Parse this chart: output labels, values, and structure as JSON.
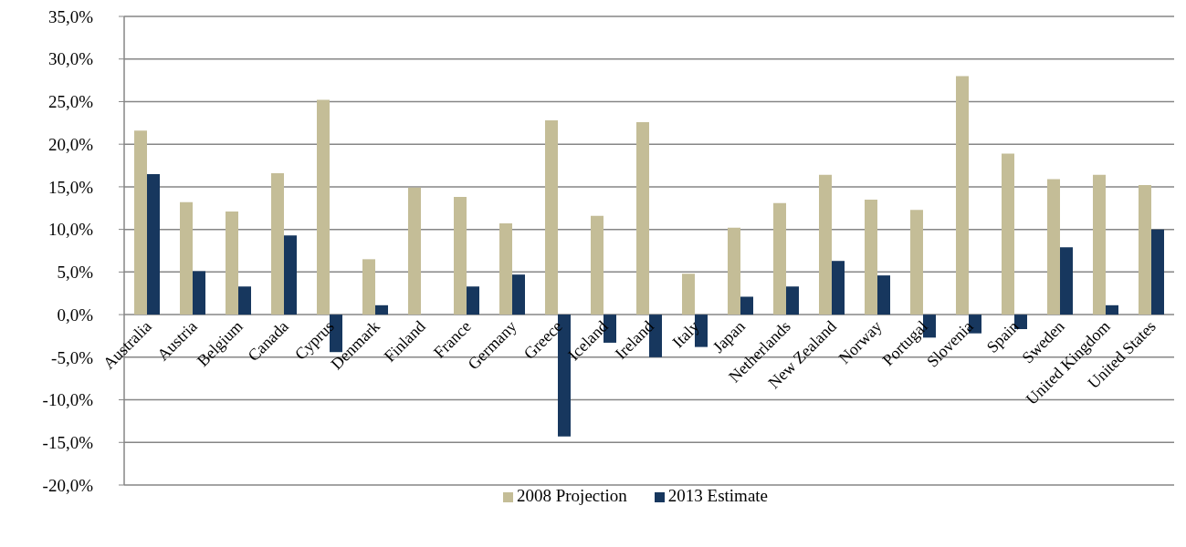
{
  "chart_data": {
    "type": "bar",
    "categories": [
      "Australia",
      "Austria",
      "Belgium",
      "Canada",
      "Cyprus",
      "Denmark",
      "Finland",
      "France",
      "Germany",
      "Greece",
      "Iceland",
      "Ireland",
      "Italy",
      "Japan",
      "Netherlands",
      "New Zealand",
      "Norway",
      "Portugal",
      "Slovenia",
      "Spain",
      "Sweden",
      "United Kingdom",
      "United States"
    ],
    "series": [
      {
        "name": "2008 Projection",
        "color": "#c4bd97",
        "values": [
          21.6,
          13.2,
          12.1,
          16.6,
          25.2,
          6.5,
          14.9,
          13.8,
          10.7,
          22.8,
          11.6,
          22.6,
          4.8,
          10.2,
          13.1,
          16.4,
          13.5,
          12.3,
          28.0,
          18.9,
          15.9,
          16.4,
          15.2
        ]
      },
      {
        "name": "2013 Estimate",
        "color": "#17375e",
        "values": [
          16.5,
          5.1,
          3.3,
          9.3,
          -4.4,
          1.1,
          null,
          3.3,
          4.7,
          -14.3,
          -3.3,
          -5.0,
          -3.8,
          2.1,
          3.3,
          6.3,
          4.6,
          -2.7,
          -2.2,
          -1.7,
          7.9,
          1.1,
          10.0
        ]
      }
    ],
    "ylim": [
      -20,
      35
    ],
    "yticks": [
      {
        "value": -20,
        "label": "-20,0%"
      },
      {
        "value": -15,
        "label": "-15,0%"
      },
      {
        "value": -10,
        "label": "-10,0%"
      },
      {
        "value": -5,
        "label": "-5,0%"
      },
      {
        "value": 0,
        "label": "0,0%"
      },
      {
        "value": 5,
        "label": "5,0%"
      },
      {
        "value": 10,
        "label": "10,0%"
      },
      {
        "value": 15,
        "label": "15,0%"
      },
      {
        "value": 20,
        "label": "20,0%"
      },
      {
        "value": 25,
        "label": "25,0%"
      },
      {
        "value": 30,
        "label": "30,0%"
      },
      {
        "value": 35,
        "label": "35,0%"
      }
    ],
    "grid": "y",
    "legend": "bottom"
  }
}
